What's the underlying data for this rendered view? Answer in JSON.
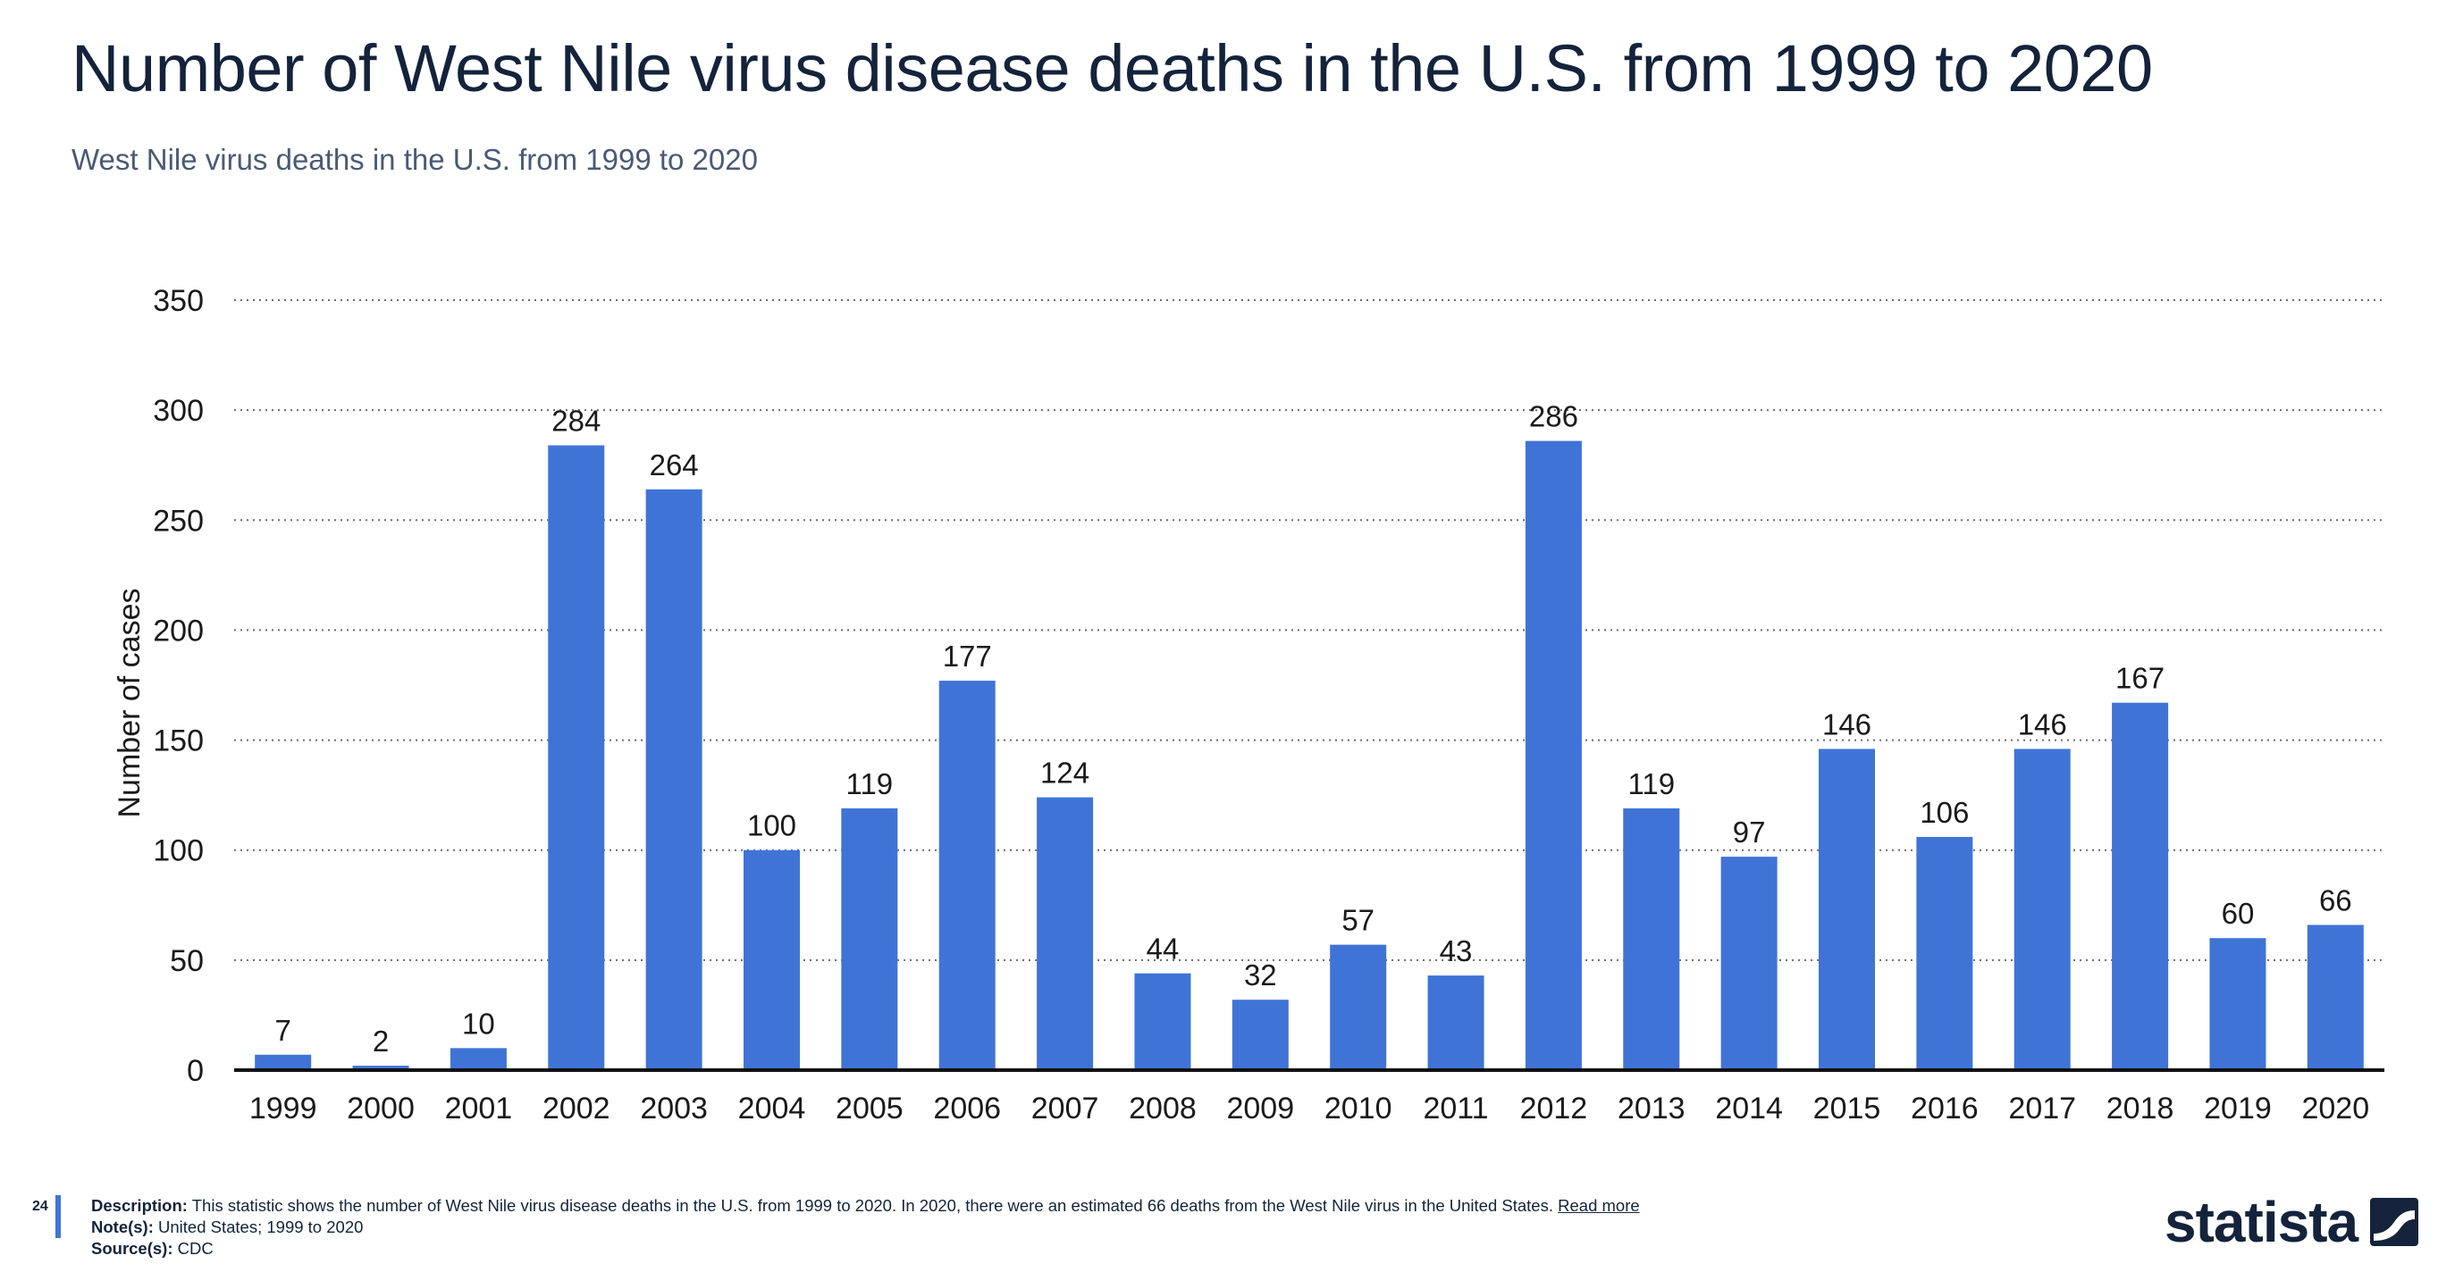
{
  "header": {
    "title": "Number of West Nile virus disease deaths in the U.S. from 1999 to 2020",
    "subtitle": "West Nile virus deaths in the U.S. from 1999 to 2020"
  },
  "chart_data": {
    "type": "bar",
    "title": "Number of West Nile virus disease deaths in the U.S. from 1999 to 2020",
    "subtitle": "West Nile virus deaths in the U.S. from 1999 to 2020",
    "xlabel": "",
    "ylabel": "Number of cases",
    "ylim": [
      0,
      350
    ],
    "yticks": [
      0,
      50,
      100,
      150,
      200,
      250,
      300,
      350
    ],
    "grid": true,
    "legend": "none",
    "bar_color": "#3f74d6",
    "categories": [
      "1999",
      "2000",
      "2001",
      "2002",
      "2003",
      "2004",
      "2005",
      "2006",
      "2007",
      "2008",
      "2009",
      "2010",
      "2011",
      "2012",
      "2013",
      "2014",
      "2015",
      "2016",
      "2017",
      "2018",
      "2019",
      "2020"
    ],
    "values": [
      7,
      2,
      10,
      284,
      264,
      100,
      119,
      177,
      124,
      44,
      32,
      57,
      43,
      286,
      119,
      97,
      146,
      106,
      146,
      167,
      60,
      66
    ]
  },
  "footer": {
    "page_number": "24",
    "description_label": "Description:",
    "description_text": " This statistic shows the number of West Nile virus disease deaths in the U.S. from 1999 to 2020. In 2020, there were an estimated 66 deaths from the West Nile virus in the United States. ",
    "read_more": "Read more",
    "notes_label": "Note(s):",
    "notes_text": " United States; 1999 to 2020",
    "source_label": "Source(s):",
    "source_text": " CDC"
  },
  "logo": {
    "text": "statista"
  }
}
